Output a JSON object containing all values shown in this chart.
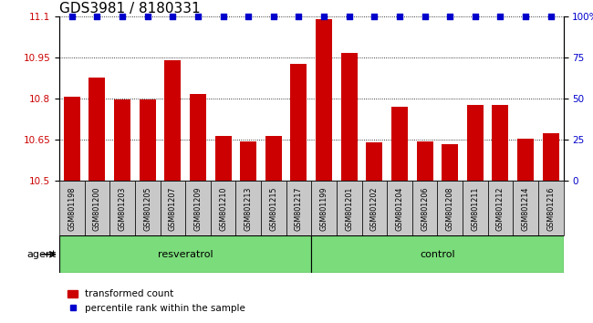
{
  "title": "GDS3981 / 8180331",
  "samples": [
    "GSM801198",
    "GSM801200",
    "GSM801203",
    "GSM801205",
    "GSM801207",
    "GSM801209",
    "GSM801210",
    "GSM801213",
    "GSM801215",
    "GSM801217",
    "GSM801199",
    "GSM801201",
    "GSM801202",
    "GSM801204",
    "GSM801206",
    "GSM801208",
    "GSM801211",
    "GSM801212",
    "GSM801214",
    "GSM801216"
  ],
  "bar_values": [
    10.805,
    10.875,
    10.795,
    10.795,
    10.94,
    10.815,
    10.665,
    10.645,
    10.665,
    10.925,
    11.09,
    10.965,
    10.64,
    10.77,
    10.645,
    10.635,
    10.775,
    10.775,
    10.655,
    10.675
  ],
  "percentile_values": [
    100,
    100,
    100,
    100,
    100,
    100,
    100,
    100,
    100,
    100,
    100,
    100,
    100,
    100,
    100,
    100,
    100,
    100,
    100,
    100
  ],
  "resveratrol_count": 10,
  "control_count": 10,
  "bar_color": "#cc0000",
  "percentile_color": "#0000cc",
  "ylim_left": [
    10.5,
    11.1
  ],
  "ylim_right": [
    0,
    100
  ],
  "yticks_left": [
    10.5,
    10.65,
    10.8,
    10.95,
    11.1
  ],
  "yticks_right": [
    0,
    25,
    50,
    75,
    100
  ],
  "ytick_labels_left": [
    "10.5",
    "10.65",
    "10.8",
    "10.95",
    "11.1"
  ],
  "ytick_labels_right": [
    "0",
    "25",
    "50",
    "75",
    "100%"
  ],
  "resveratrol_label": "resveratrol",
  "control_label": "control",
  "agent_label": "agent",
  "legend_bar_label": "transformed count",
  "legend_dot_label": "percentile rank within the sample",
  "group_bar_color": "#c8c8c8",
  "group_bg": "#7adc7a",
  "title_fontsize": 11,
  "tick_fontsize": 7.5,
  "sample_fontsize": 5.8,
  "label_fontsize": 8,
  "legend_fontsize": 7.5
}
